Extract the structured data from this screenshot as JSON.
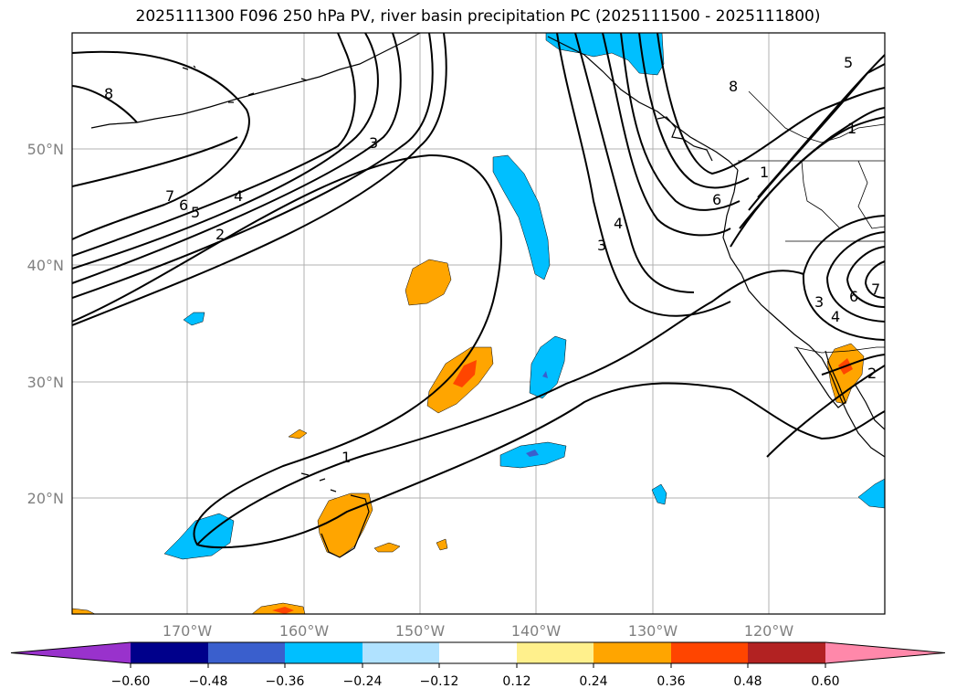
{
  "title": "2025111300 F096 250 hPa PV, river basin precipitation PC (2025111500 - 2025111800)",
  "map": {
    "lat_labels": [
      "50°N",
      "40°N",
      "30°N",
      "20°N"
    ],
    "lon_labels": [
      "170°W",
      "160°W",
      "150°W",
      "140°W",
      "130°W",
      "120°W"
    ],
    "contour_labels": [
      "8",
      "7",
      "6",
      "5",
      "4",
      "3",
      "2",
      "1",
      "5",
      "1",
      "6",
      "4",
      "3",
      "7",
      "6",
      "3",
      "4",
      "2",
      "1",
      "8"
    ]
  },
  "colorbar": {
    "colors": [
      "#9932cc",
      "#00008b",
      "#3a5fcd",
      "#00bfff",
      "#b0e2ff",
      "#ffffff",
      "#fff08c",
      "#ffa500",
      "#ff4500",
      "#b22222",
      "#ff88aa"
    ],
    "tick_labels": [
      "−0.60",
      "−0.48",
      "−0.36",
      "−0.24",
      "−0.12",
      "0.12",
      "0.24",
      "0.36",
      "0.48",
      "0.60"
    ]
  }
}
